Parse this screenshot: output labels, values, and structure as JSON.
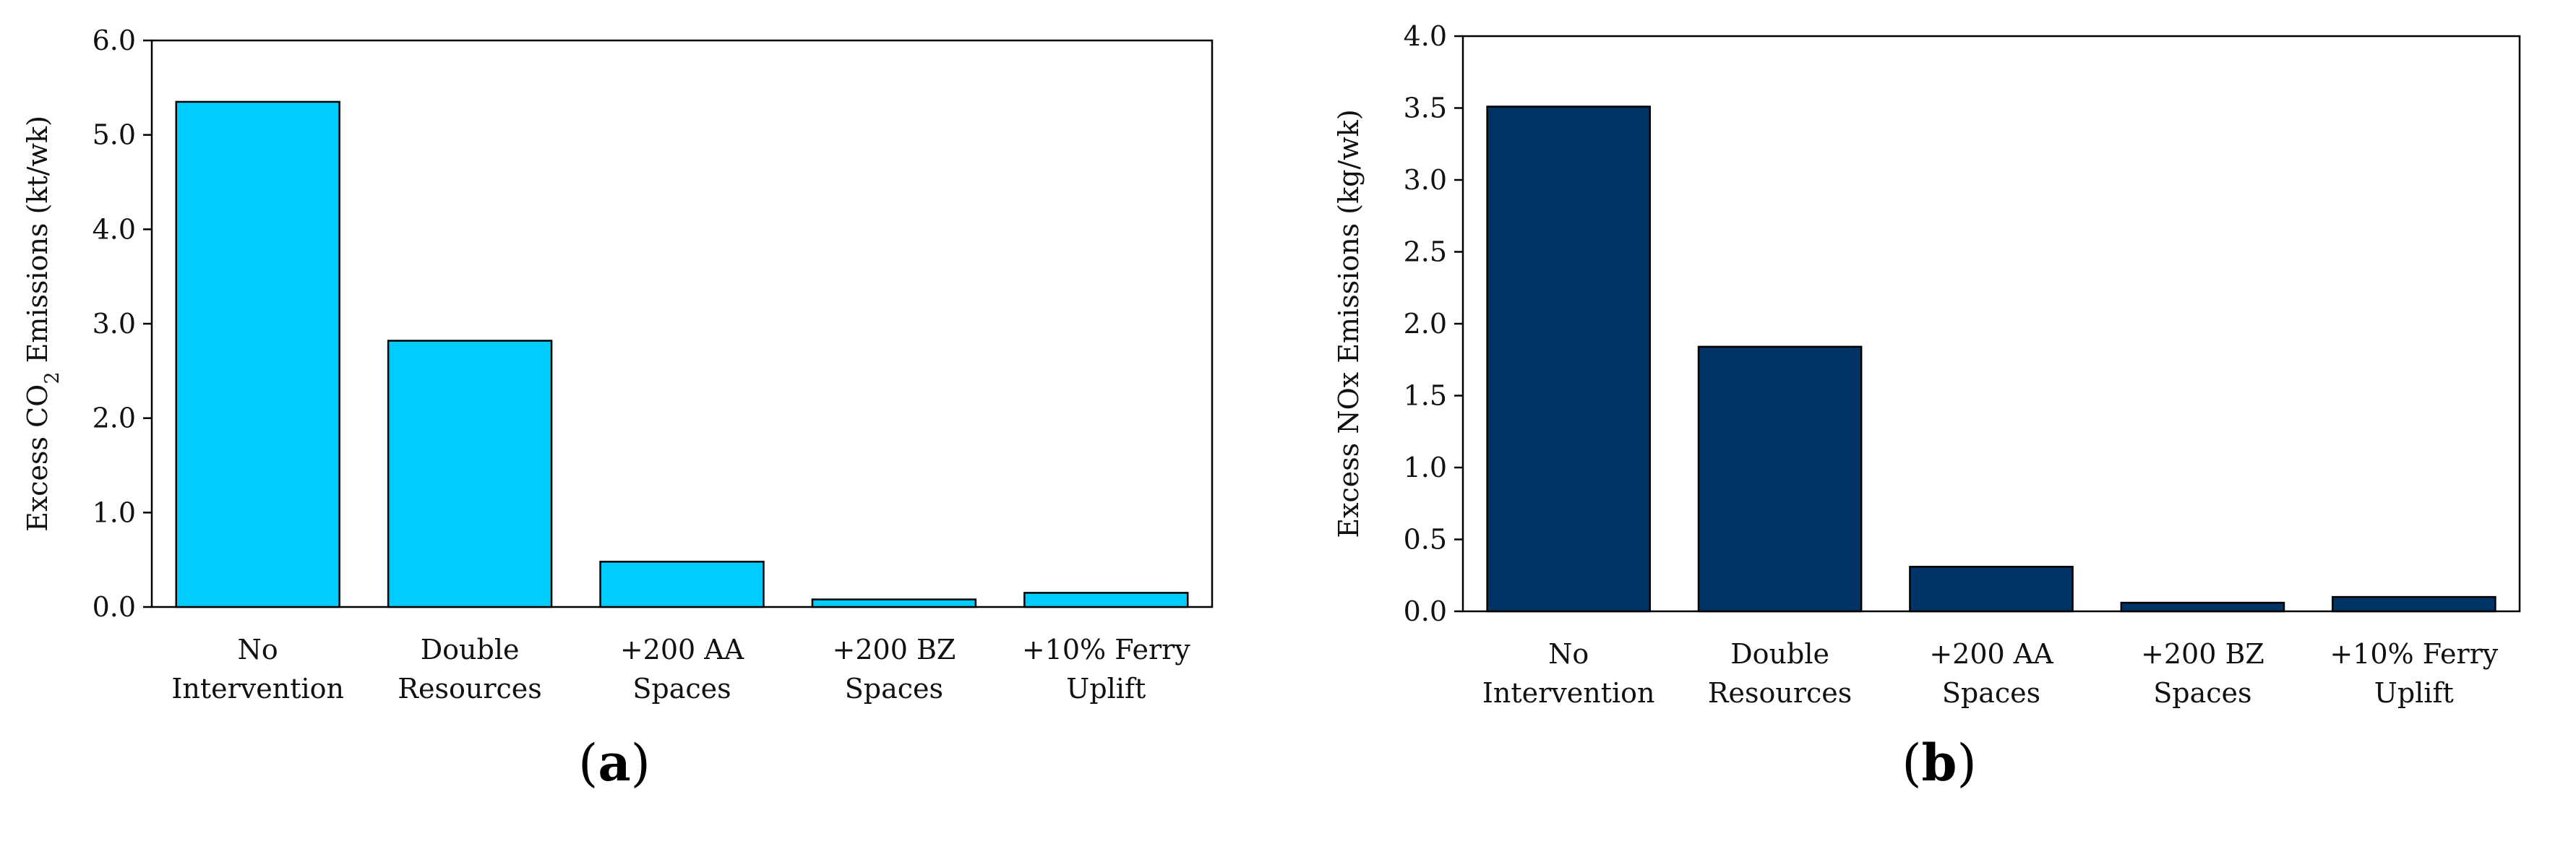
{
  "chart_data": [
    {
      "panel": "a",
      "panel_label": "a",
      "type": "bar",
      "categories": [
        [
          "No",
          "Intervention"
        ],
        [
          "Double",
          "Resources"
        ],
        [
          "+200 AA",
          "Spaces"
        ],
        [
          "+200 BZ",
          "Spaces"
        ],
        [
          "+10% Ferry",
          "Uplift"
        ]
      ],
      "values": [
        5.35,
        2.82,
        0.48,
        0.08,
        0.15
      ],
      "ylabel_parts": [
        "Excess CO",
        "2",
        " Emissions  (kt/wk)"
      ],
      "xlabel": "",
      "ylim": [
        0,
        6.0
      ],
      "yticks": [
        "0.0",
        "1.0",
        "2.0",
        "3.0",
        "4.0",
        "5.0",
        "6.0"
      ],
      "bar_color": "#00CCFF",
      "grid": false
    },
    {
      "panel": "b",
      "panel_label": "b",
      "type": "bar",
      "categories": [
        [
          "No",
          "Intervention"
        ],
        [
          "Double",
          "Resources"
        ],
        [
          "+200 AA",
          "Spaces"
        ],
        [
          "+200 BZ",
          "Spaces"
        ],
        [
          "+10% Ferry",
          "Uplift"
        ]
      ],
      "values": [
        3.51,
        1.84,
        0.31,
        0.06,
        0.1
      ],
      "ylabel_parts": [
        "Excess NOx Emissions  (kg/wk)"
      ],
      "xlabel": "",
      "ylim": [
        0,
        4.0
      ],
      "yticks": [
        "0.0",
        "0.5",
        "1.0",
        "1.5",
        "2.0",
        "2.5",
        "3.0",
        "3.5",
        "4.0"
      ],
      "bar_color": "#003366",
      "grid": false
    }
  ]
}
